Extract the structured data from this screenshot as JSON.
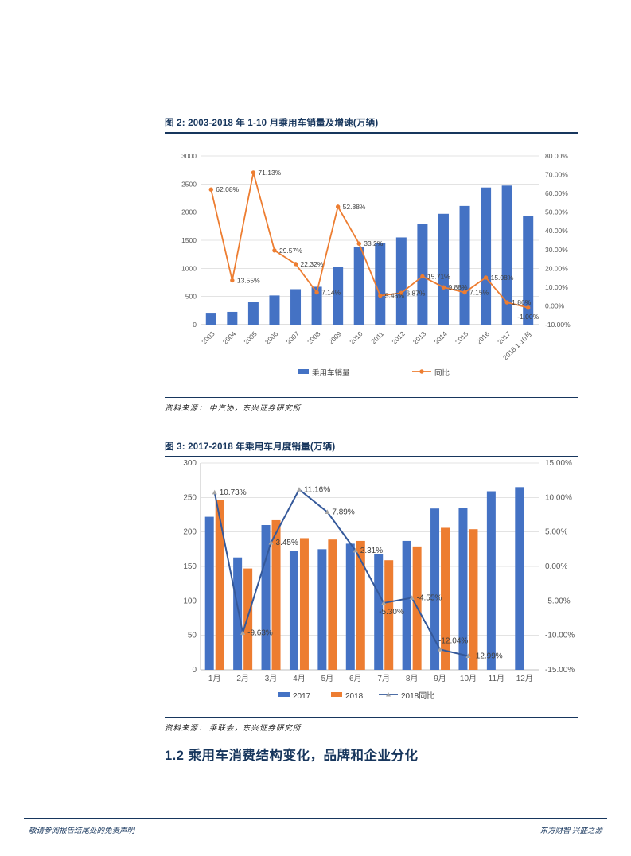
{
  "colors": {
    "navy": "#17365D",
    "bar_blue": "#4472C4",
    "orange": "#ED7D31",
    "line_navy": "#35599A",
    "marker_gray": "#A6A6A6",
    "grid": "#E3E3E3",
    "axis": "#BFBFBF",
    "tick_text": "#595959",
    "label_text": "#404040"
  },
  "figures": [
    {
      "source": "资料来源： 中汽协，东兴证券研究所"
    },
    {
      "source": "资料来源： 乘联会，东兴证券研究所"
    }
  ],
  "section_heading": "1.2 乘用车消费结构变化，品牌和企业分化",
  "footer": {
    "left": "敬请参阅报告结尾处的免责声明",
    "right": "东方财智 兴盛之源"
  },
  "chart_data": [
    {
      "type": "bar+line combo",
      "title": "图  2: 2003-2018 年 1-10 月乘用车销量及增速(万辆)",
      "categories": [
        "2003",
        "2004",
        "2005",
        "2006",
        "2007",
        "2008",
        "2009",
        "2010",
        "2011",
        "2012",
        "2013",
        "2014",
        "2015",
        "2016",
        "2017",
        "2018 1-10月"
      ],
      "bar_series": [
        {
          "name": "乘用车销量",
          "color": "#4472C4",
          "values": [
            197,
            227,
            397,
            518,
            630,
            673,
            1033,
            1376,
            1447,
            1550,
            1793,
            1970,
            2110,
            2438,
            2472,
            1930
          ]
        }
      ],
      "line_series": {
        "name": "同比",
        "color": "#ED7D31",
        "marker": "dot",
        "values": [
          62.08,
          13.55,
          71.13,
          29.57,
          22.32,
          7.14,
          52.88,
          33.2,
          5.45,
          6.87,
          15.71,
          9.88,
          7.15,
          15.08,
          1.86,
          -1.0
        ],
        "labels": [
          "62.08%",
          "13.55%",
          "71.13%",
          "29.57%",
          "22.32%",
          "7.14%",
          "52.88%",
          "33.2%",
          "5.45%",
          "6.87%",
          "15.71%",
          "9.88%",
          "7.15%",
          "15.08%",
          "1.86%",
          "-1.00%"
        ],
        "label_pos": [
          "r",
          "r",
          "r",
          "r",
          "r",
          "r",
          "r",
          "r",
          "r",
          "r",
          "r",
          "r",
          "r",
          "r",
          "r",
          "b"
        ]
      },
      "left_axis": {
        "min": 0,
        "max": 3000,
        "ticks": [
          "3000",
          "2500",
          "2000",
          "1500",
          "1000",
          "500",
          "0"
        ]
      },
      "right_axis": {
        "min": -10,
        "max": 80,
        "ticks": [
          "80.00%",
          "70.00%",
          "60.00%",
          "50.00%",
          "40.00%",
          "30.00%",
          "20.00%",
          "10.00%",
          "0.00%",
          "-10.00%"
        ]
      },
      "legend": [
        {
          "label": "乘用车销量",
          "swatch": "bar",
          "color": "#4472C4"
        },
        {
          "label": "同比",
          "swatch": "line-dot",
          "color": "#ED7D31"
        }
      ],
      "grid": true,
      "legend_position": "bottom"
    },
    {
      "type": "bar+line combo",
      "title": "图  3: 2017-2018 年乘用车月度销量(万辆)",
      "categories": [
        "1月",
        "2月",
        "3月",
        "4月",
        "5月",
        "6月",
        "7月",
        "8月",
        "9月",
        "10月",
        "11月",
        "12月"
      ],
      "bar_series": [
        {
          "name": "2017",
          "color": "#4472C4",
          "values": [
            222,
            163,
            210,
            172,
            175,
            183,
            168,
            187,
            234,
            235,
            259,
            265
          ]
        },
        {
          "name": "2018",
          "color": "#ED7D31",
          "values": [
            246,
            147,
            217,
            191,
            189,
            187,
            159,
            179,
            206,
            204,
            null,
            null
          ]
        }
      ],
      "line_series": {
        "name": "2018同比",
        "color": "#35599A",
        "marker": "triangle",
        "values": [
          10.73,
          -9.63,
          3.45,
          11.16,
          7.89,
          2.31,
          -5.3,
          -4.55,
          -12.04,
          -12.99
        ],
        "labels": [
          "10.73%",
          "-9.63%",
          "3.45%",
          "11.16%",
          "7.89%",
          "2.31%",
          "-5.30%",
          "-4.55%",
          "-12.04%",
          "-12.99%"
        ],
        "label_pos": [
          "r",
          "r",
          "r",
          "r",
          "r",
          "r",
          "br",
          "r",
          "ar",
          "r"
        ]
      },
      "left_axis": {
        "min": 0,
        "max": 300,
        "ticks": [
          "300",
          "250",
          "200",
          "150",
          "100",
          "50",
          "0"
        ]
      },
      "right_axis": {
        "min": -15,
        "max": 15,
        "ticks": [
          "15.00%",
          "10.00%",
          "5.00%",
          "0.00%",
          "-5.00%",
          "-10.00%",
          "-15.00%"
        ]
      },
      "legend": [
        {
          "label": "2017",
          "swatch": "bar",
          "color": "#4472C4"
        },
        {
          "label": "2018",
          "swatch": "bar",
          "color": "#ED7D31"
        },
        {
          "label": "2018同比",
          "swatch": "line-tri",
          "color": "#35599A"
        }
      ],
      "grid": true,
      "legend_position": "bottom"
    }
  ]
}
